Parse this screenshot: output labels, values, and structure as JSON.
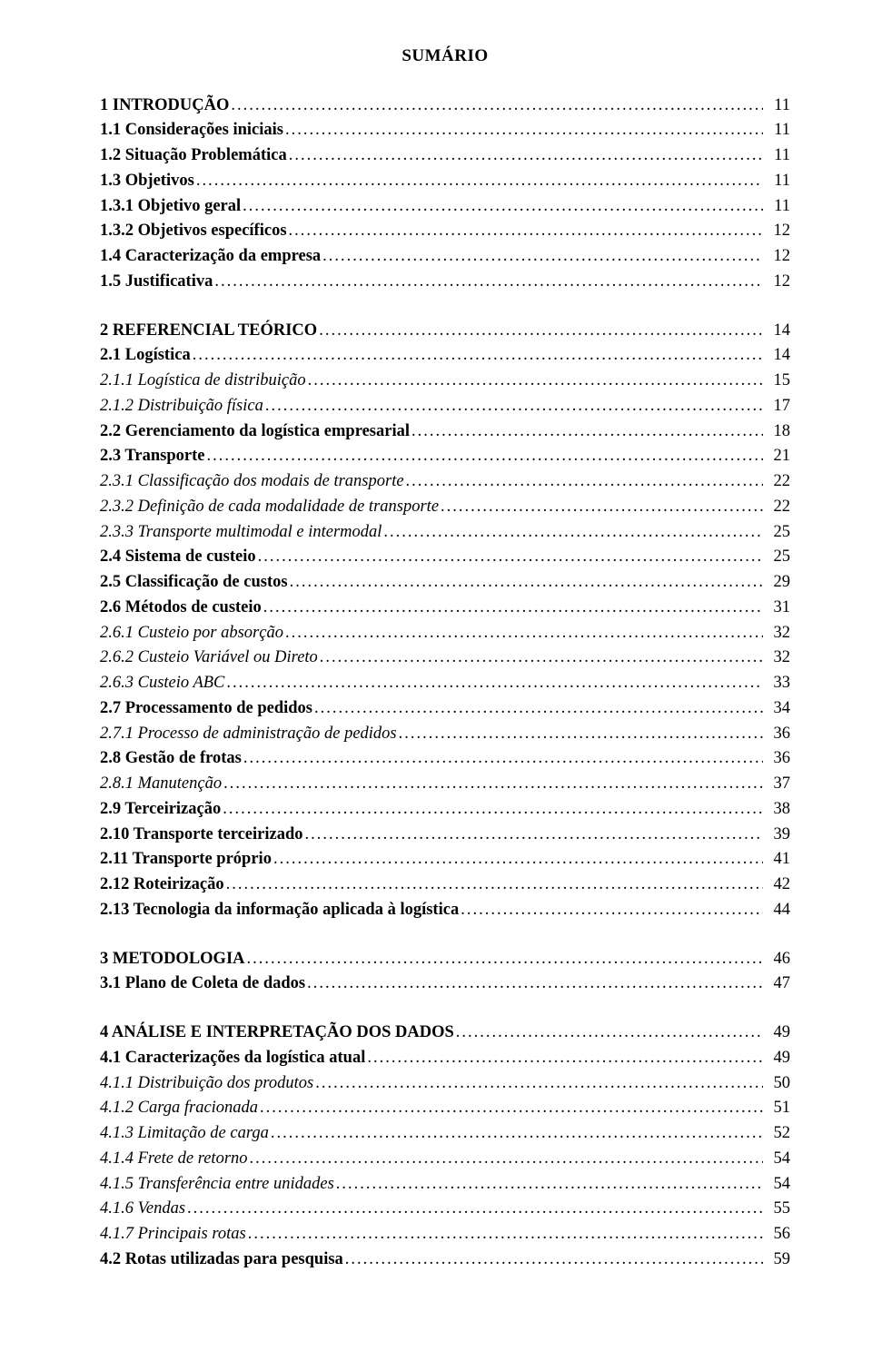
{
  "title": "SUMÁRIO",
  "styles": {
    "font_family": "Times New Roman",
    "text_color": "#000000",
    "background_color": "#ffffff",
    "title_fontsize": 19,
    "body_fontsize": 18.5
  },
  "blocks": [
    {
      "items": [
        {
          "label": "1 INTRODUÇÃO",
          "page": "11",
          "bold": true
        },
        {
          "label": "1.1 Considerações iniciais",
          "page": "11",
          "bold": true
        },
        {
          "label": "1.2 Situação Problemática",
          "page": "11",
          "bold": true
        },
        {
          "label": "1.3 Objetivos",
          "page": "11",
          "bold": true
        },
        {
          "label": "1.3.1 Objetivo geral",
          "page": "11",
          "bold": true
        },
        {
          "label": "1.3.2 Objetivos específicos",
          "page": "12",
          "bold": true
        },
        {
          "label": "1.4 Caracterização da empresa",
          "page": "12",
          "bold": true
        },
        {
          "label": "1.5 Justificativa",
          "page": "12",
          "bold": true
        }
      ]
    },
    {
      "items": [
        {
          "label": "2 REFERENCIAL TEÓRICO",
          "page": "14",
          "bold": true
        },
        {
          "label": "2.1 Logística",
          "page": "14",
          "bold": true
        },
        {
          "label": "2.1.1 Logística de distribuição",
          "page": "15",
          "italic": true
        },
        {
          "label": "2.1.2 Distribuição física",
          "page": "17",
          "italic": true
        },
        {
          "label": "2.2 Gerenciamento da logística empresarial",
          "page": "18",
          "bold": true
        },
        {
          "label": "2.3 Transporte",
          "page": "21",
          "bold": true
        },
        {
          "label": "2.3.1 Classificação dos modais de transporte",
          "page": "22",
          "italic": true
        },
        {
          "label": "2.3.2 Definição de cada modalidade de transporte",
          "page": "22",
          "italic": true
        },
        {
          "label": "2.3.3 Transporte multimodal e intermodal",
          "page": "25",
          "italic": true
        },
        {
          "label": "2.4 Sistema de custeio",
          "page": "25",
          "bold": true
        },
        {
          "label": "2.5 Classificação de custos",
          "page": "29",
          "bold": true
        },
        {
          "label": "2.6 Métodos de custeio",
          "page": "31",
          "bold": true
        },
        {
          "label": "2.6.1 Custeio por absorção",
          "page": "32",
          "italic": true
        },
        {
          "label": "2.6.2 Custeio Variável ou Direto",
          "page": "32",
          "italic": true
        },
        {
          "label": "2.6.3 Custeio ABC",
          "page": "33",
          "italic": true
        },
        {
          "label": "2.7 Processamento de pedidos",
          "page": "34",
          "bold": true
        },
        {
          "label": "2.7.1 Processo de administração de pedidos",
          "page": "36",
          "italic": true
        },
        {
          "label": "2.8 Gestão de frotas",
          "page": "36",
          "bold": true
        },
        {
          "label": "2.8.1 Manutenção",
          "page": "37",
          "italic": true
        },
        {
          "label": "2.9 Terceirização",
          "page": "38",
          "bold": true
        },
        {
          "label": "2.10 Transporte terceirizado",
          "page": "39",
          "bold": true
        },
        {
          "label": "2.11 Transporte próprio",
          "page": "41",
          "bold": true
        },
        {
          "label": "2.12 Roteirização",
          "page": "42",
          "bold": true
        },
        {
          "label": "2.13 Tecnologia da informação aplicada à logística",
          "page": "44",
          "bold": true
        }
      ]
    },
    {
      "items": [
        {
          "label": "3 METODOLOGIA",
          "page": "46",
          "bold": true
        },
        {
          "label": "3.1 Plano de Coleta de dados",
          "page": "47",
          "bold": true
        }
      ]
    },
    {
      "items": [
        {
          "label": "4 ANÁLISE E INTERPRETAÇÃO DOS DADOS",
          "page": "49",
          "bold": true
        },
        {
          "label": "4.1 Caracterizações da logística atual",
          "page": "49",
          "bold": true
        },
        {
          "label": "4.1.1 Distribuição dos produtos",
          "page": "50",
          "italic": true
        },
        {
          "label": "4.1.2 Carga fracionada",
          "page": "51",
          "italic": true
        },
        {
          "label": "4.1.3 Limitação de carga",
          "page": "52",
          "italic": true
        },
        {
          "label": "4.1.4 Frete de retorno",
          "page": "54",
          "italic": true
        },
        {
          "label": "4.1.5 Transferência entre unidades",
          "page": "54",
          "italic": true
        },
        {
          "label": "4.1.6 Vendas",
          "page": "55",
          "italic": true
        },
        {
          "label": "4.1.7 Principais rotas",
          "page": "56",
          "italic": true
        },
        {
          "label": "4.2 Rotas utilizadas para pesquisa",
          "page": "59",
          "bold": true
        }
      ]
    }
  ]
}
